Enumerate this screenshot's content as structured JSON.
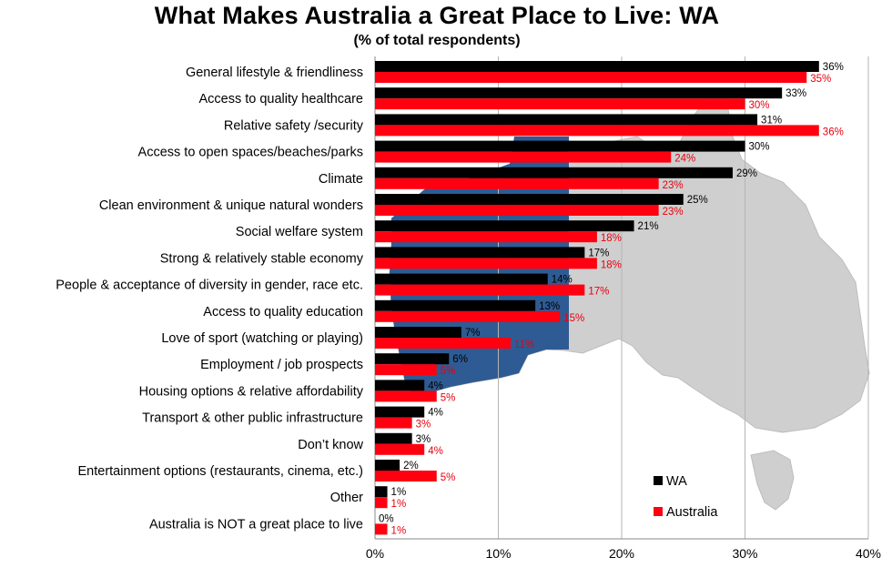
{
  "title": "What Makes Australia a Great Place to Live: WA",
  "subtitle": "(% of total respondents)",
  "colors": {
    "wa": "#000000",
    "australia": "#ff0010",
    "australia_label": "#e8000f",
    "map_land": "#cfcfcf",
    "map_wa": "#2e5b93"
  },
  "chart_data": {
    "type": "bar",
    "orientation": "horizontal",
    "title": "What Makes Australia a Great Place to Live: WA",
    "subtitle": "(% of total respondents)",
    "categories": [
      "General lifestyle & friendliness",
      "Access to quality healthcare",
      "Relative safety /security",
      "Access to open spaces/beaches/parks",
      "Climate",
      "Clean environment & unique natural wonders",
      "Social welfare system",
      "Strong & relatively stable economy",
      "People & acceptance of diversity in gender, race etc.",
      "Access to quality education",
      "Love of sport (watching or playing)",
      "Employment / job prospects",
      "Housing options & relative affordability",
      "Transport & other public infrastructure",
      "Don’t know",
      "Entertainment options (restaurants, cinema, etc.)",
      "Other",
      "Australia is NOT a great place to live"
    ],
    "series": [
      {
        "name": "WA",
        "color": "#000000",
        "values": [
          36,
          33,
          31,
          30,
          29,
          25,
          21,
          17,
          14,
          13,
          7,
          6,
          4,
          4,
          3,
          2,
          1,
          0
        ],
        "labels": [
          "36%",
          "33%",
          "31%",
          "30%",
          "29%",
          "25%",
          "21%",
          "17%",
          "14%",
          "13%",
          "7%",
          "6%",
          "4%",
          "4%",
          "3%",
          "2%",
          "1%",
          "0%"
        ]
      },
      {
        "name": "Australia",
        "color": "#ff0010",
        "values": [
          35,
          30,
          36,
          24,
          23,
          23,
          18,
          18,
          17,
          15,
          11,
          5,
          5,
          3,
          4,
          5,
          1,
          1
        ],
        "labels": [
          "35%",
          "30%",
          "36%",
          "24%",
          "23%",
          "23%",
          "18%",
          "18%",
          "17%",
          "15%",
          "11%",
          "5%",
          "5%",
          "3%",
          "4%",
          "5%",
          "1%",
          "1%"
        ]
      }
    ],
    "xlim": [
      0,
      40
    ],
    "xticks": [
      0,
      10,
      20,
      30,
      40
    ],
    "xtick_labels": [
      "0%",
      "10%",
      "20%",
      "30%",
      "40%"
    ],
    "grid": true,
    "legend": {
      "position": "bottom-right",
      "entries": [
        "WA",
        "Australia"
      ]
    },
    "background": "map of Australia with Western Australia highlighted"
  }
}
